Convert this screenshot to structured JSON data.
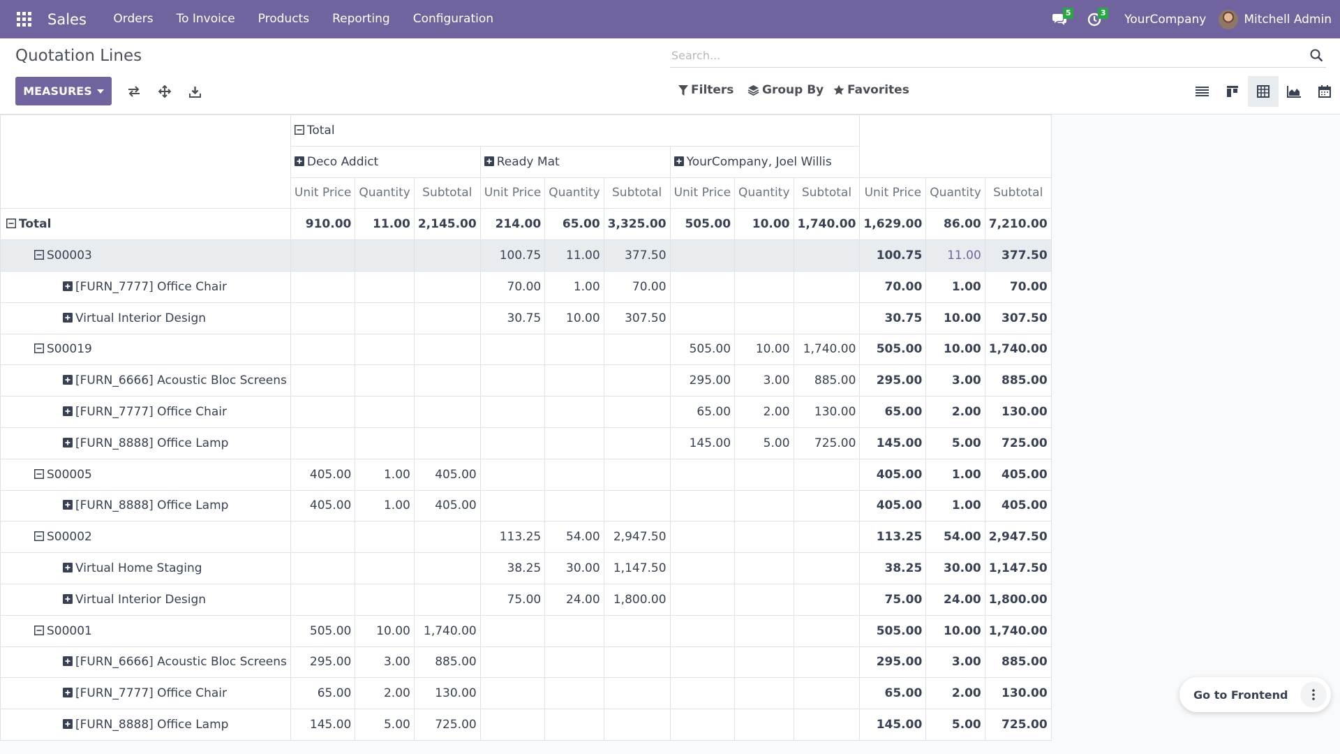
{
  "navbar": {
    "brand": "Sales",
    "menu": [
      "Orders",
      "To Invoice",
      "Products",
      "Reporting",
      "Configuration"
    ],
    "messages_badge": "5",
    "activities_badge": "3",
    "company": "YourCompany",
    "user": "Mitchell Admin"
  },
  "control": {
    "breadcrumb": "Quotation Lines",
    "search_placeholder": "Search...",
    "measures_label": "MEASURES",
    "filters_label": "Filters",
    "groupby_label": "Group By",
    "favorites_label": "Favorites",
    "active_view": "pivot"
  },
  "pivot": {
    "col_total": "Total",
    "col_groups": [
      "Deco Addict",
      "Ready Mat",
      "YourCompany, Joel Willis"
    ],
    "measures": [
      "Unit Price",
      "Quantity",
      "Subtotal"
    ],
    "rows": [
      {
        "label": "Total",
        "level": 0,
        "icon": "minus",
        "values": [
          "910.00",
          "11.00",
          "2,145.00",
          "214.00",
          "65.00",
          "3,325.00",
          "505.00",
          "10.00",
          "1,740.00",
          "1,629.00",
          "86.00",
          "7,210.00"
        ]
      },
      {
        "label": "S00003",
        "level": 1,
        "icon": "minus",
        "values": [
          "",
          "",
          "",
          "100.75",
          "11.00",
          "377.50",
          "",
          "",
          "",
          "100.75",
          "11.00",
          "377.50"
        ]
      },
      {
        "label": "[FURN_7777] Office Chair",
        "level": 2,
        "icon": "plus",
        "values": [
          "",
          "",
          "",
          "70.00",
          "1.00",
          "70.00",
          "",
          "",
          "",
          "70.00",
          "1.00",
          "70.00"
        ]
      },
      {
        "label": "Virtual Interior Design",
        "level": 2,
        "icon": "plus",
        "values": [
          "",
          "",
          "",
          "30.75",
          "10.00",
          "307.50",
          "",
          "",
          "",
          "30.75",
          "10.00",
          "307.50"
        ]
      },
      {
        "label": "S00019",
        "level": 1,
        "icon": "minus",
        "values": [
          "",
          "",
          "",
          "",
          "",
          "",
          "505.00",
          "10.00",
          "1,740.00",
          "505.00",
          "10.00",
          "1,740.00"
        ]
      },
      {
        "label": "[FURN_6666] Acoustic Bloc Screens",
        "level": 2,
        "icon": "plus",
        "values": [
          "",
          "",
          "",
          "",
          "",
          "",
          "295.00",
          "3.00",
          "885.00",
          "295.00",
          "3.00",
          "885.00"
        ]
      },
      {
        "label": "[FURN_7777] Office Chair",
        "level": 2,
        "icon": "plus",
        "values": [
          "",
          "",
          "",
          "",
          "",
          "",
          "65.00",
          "2.00",
          "130.00",
          "65.00",
          "2.00",
          "130.00"
        ]
      },
      {
        "label": "[FURN_8888] Office Lamp",
        "level": 2,
        "icon": "plus",
        "values": [
          "",
          "",
          "",
          "",
          "",
          "",
          "145.00",
          "5.00",
          "725.00",
          "145.00",
          "5.00",
          "725.00"
        ]
      },
      {
        "label": "S00005",
        "level": 1,
        "icon": "minus",
        "values": [
          "405.00",
          "1.00",
          "405.00",
          "",
          "",
          "",
          "",
          "",
          "",
          "405.00",
          "1.00",
          "405.00"
        ]
      },
      {
        "label": "[FURN_8888] Office Lamp",
        "level": 2,
        "icon": "plus",
        "values": [
          "405.00",
          "1.00",
          "405.00",
          "",
          "",
          "",
          "",
          "",
          "",
          "405.00",
          "1.00",
          "405.00"
        ]
      },
      {
        "label": "S00002",
        "level": 1,
        "icon": "minus",
        "values": [
          "",
          "",
          "",
          "113.25",
          "54.00",
          "2,947.50",
          "",
          "",
          "",
          "113.25",
          "54.00",
          "2,947.50"
        ]
      },
      {
        "label": "Virtual Home Staging",
        "level": 2,
        "icon": "plus",
        "values": [
          "",
          "",
          "",
          "38.25",
          "30.00",
          "1,147.50",
          "",
          "",
          "",
          "38.25",
          "30.00",
          "1,147.50"
        ]
      },
      {
        "label": "Virtual Interior Design",
        "level": 2,
        "icon": "plus",
        "values": [
          "",
          "",
          "",
          "75.00",
          "24.00",
          "1,800.00",
          "",
          "",
          "",
          "75.00",
          "24.00",
          "1,800.00"
        ]
      },
      {
        "label": "S00001",
        "level": 1,
        "icon": "minus",
        "values": [
          "505.00",
          "10.00",
          "1,740.00",
          "",
          "",
          "",
          "",
          "",
          "",
          "505.00",
          "10.00",
          "1,740.00"
        ]
      },
      {
        "label": "[FURN_6666] Acoustic Bloc Screens",
        "level": 2,
        "icon": "plus",
        "values": [
          "295.00",
          "3.00",
          "885.00",
          "",
          "",
          "",
          "",
          "",
          "",
          "295.00",
          "3.00",
          "885.00"
        ]
      },
      {
        "label": "[FURN_7777] Office Chair",
        "level": 2,
        "icon": "plus",
        "values": [
          "65.00",
          "2.00",
          "130.00",
          "",
          "",
          "",
          "",
          "",
          "",
          "65.00",
          "2.00",
          "130.00"
        ]
      },
      {
        "label": "[FURN_8888] Office Lamp",
        "level": 2,
        "icon": "plus",
        "values": [
          "145.00",
          "5.00",
          "725.00",
          "",
          "",
          "",
          "",
          "",
          "",
          "145.00",
          "5.00",
          "725.00"
        ]
      }
    ]
  },
  "floating": {
    "go_frontend": "Go to Frontend"
  },
  "colors": {
    "brand": "#71639e",
    "badge": "#28a745"
  }
}
